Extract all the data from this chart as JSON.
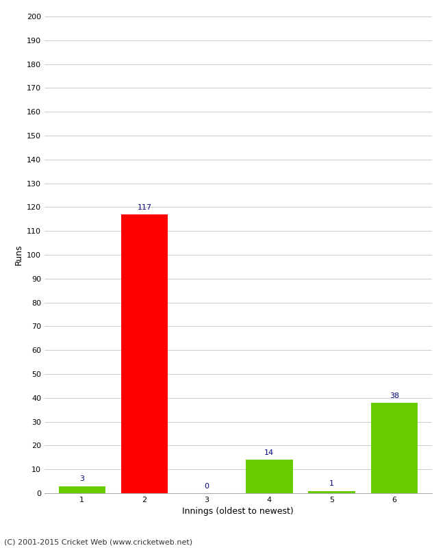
{
  "categories": [
    "1",
    "2",
    "3",
    "4",
    "5",
    "6"
  ],
  "values": [
    3,
    117,
    0,
    14,
    1,
    38
  ],
  "bar_colors": [
    "#66cc00",
    "#ff0000",
    "#66cc00",
    "#66cc00",
    "#66cc00",
    "#66cc00"
  ],
  "xlabel": "Innings (oldest to newest)",
  "ylabel": "Runs",
  "ylim": [
    0,
    200
  ],
  "yticks": [
    0,
    10,
    20,
    30,
    40,
    50,
    60,
    70,
    80,
    90,
    100,
    110,
    120,
    130,
    140,
    150,
    160,
    170,
    180,
    190,
    200
  ],
  "value_label_color": "#000080",
  "footer": "(C) 2001-2015 Cricket Web (www.cricketweb.net)",
  "background_color": "#ffffff",
  "grid_color": "#cccccc",
  "bar_width": 0.75,
  "label_fontsize": 8,
  "tick_fontsize": 8,
  "axis_label_fontsize": 9,
  "footer_fontsize": 8
}
